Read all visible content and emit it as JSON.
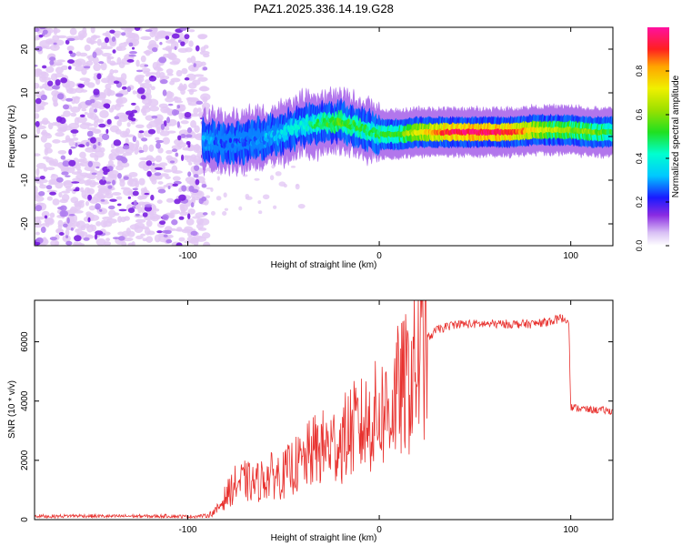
{
  "title": "PAZ1.2025.336.14.19.G28",
  "colors": {
    "snr_line": "#e8322f",
    "scatter_light": "#e3c9f5",
    "scatter_dark": "#7a1fe0",
    "axis": "#000000"
  },
  "colorbar": {
    "label": "Normalized spectral amplitude",
    "ticks": [
      "0.0",
      "0.2",
      "0.4",
      "0.6",
      "0.8"
    ],
    "tick_values": [
      0.0,
      0.2,
      0.4,
      0.6,
      0.8
    ],
    "range": [
      0,
      1
    ]
  },
  "chart_data": [
    {
      "type": "heatmap",
      "name": "spectrogram",
      "xlabel": "Height of straight line (km)",
      "ylabel": "Frequency (Hz)",
      "xlim": [
        -180,
        122
      ],
      "ylim": [
        -25,
        25
      ],
      "xticks": [
        -100,
        0,
        100
      ],
      "xtick_labels": [
        "-100",
        "0",
        "100"
      ],
      "yticks": [
        -20,
        -10,
        0,
        10,
        20
      ],
      "ytick_labels": [
        "-20",
        "-10",
        "0",
        "10",
        "20"
      ],
      "noise_region_x": [
        -180,
        -90
      ],
      "signal_track": {
        "x": [
          -92,
          -80,
          -70,
          -60,
          -50,
          -40,
          -30,
          -20,
          -10,
          0,
          10,
          20,
          30,
          40,
          50,
          60,
          70,
          80,
          90,
          100,
          110,
          122
        ],
        "freq": [
          -1,
          -1.5,
          -1,
          -0.5,
          1,
          2.5,
          3,
          3.5,
          2,
          0.5,
          0.5,
          1,
          1,
          1,
          1,
          1,
          1,
          1.5,
          1.5,
          1.5,
          1,
          1
        ],
        "amplitude": [
          0.3,
          0.25,
          0.25,
          0.3,
          0.35,
          0.4,
          0.5,
          0.55,
          0.5,
          0.5,
          0.55,
          0.7,
          0.85,
          0.95,
          0.95,
          0.95,
          0.9,
          0.75,
          0.65,
          0.6,
          0.6,
          0.5
        ]
      }
    },
    {
      "type": "line",
      "name": "snr",
      "xlabel": "Height of straight line (km)",
      "ylabel": "SNR (10 * v/v)",
      "xlim": [
        -180,
        122
      ],
      "ylim": [
        0,
        7400
      ],
      "xticks": [
        -100,
        0,
        100
      ],
      "xtick_labels": [
        "-100",
        "0",
        "100"
      ],
      "yticks": [
        0,
        2000,
        4000,
        6000
      ],
      "ytick_labels": [
        "0",
        "2000",
        "4000",
        "6000"
      ],
      "series": [
        {
          "name": "SNR",
          "x": [
            -180,
            -170,
            -160,
            -150,
            -140,
            -130,
            -120,
            -110,
            -100,
            -90,
            -85,
            -80,
            -75,
            -70,
            -65,
            -60,
            -55,
            -50,
            -45,
            -40,
            -35,
            -30,
            -25,
            -20,
            -15,
            -10,
            -5,
            0,
            5,
            10,
            15,
            20,
            25,
            30,
            40,
            50,
            60,
            70,
            80,
            90,
            95,
            99,
            100,
            105,
            110,
            115,
            122
          ],
          "y": [
            120,
            110,
            130,
            120,
            110,
            120,
            110,
            120,
            100,
            130,
            300,
            800,
            1200,
            1300,
            1200,
            1400,
            1500,
            1500,
            1800,
            1900,
            2300,
            2400,
            2500,
            2600,
            3000,
            3100,
            3300,
            3600,
            3700,
            4300,
            4600,
            5200,
            6100,
            6400,
            6600,
            6600,
            6600,
            6600,
            6600,
            6700,
            6800,
            6700,
            3800,
            3750,
            3700,
            3700,
            3650
          ]
        }
      ]
    }
  ]
}
